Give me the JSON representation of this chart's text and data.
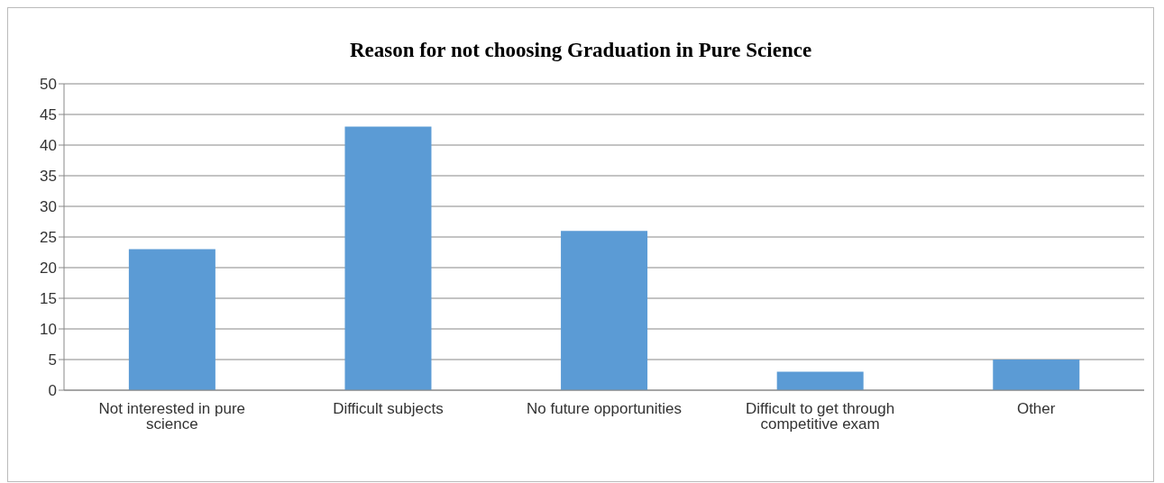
{
  "chart_data": {
    "type": "bar",
    "title": "Reason for not choosing Graduation in Pure Science",
    "categories": [
      "Not interested  in pure science",
      "Difficult subjects",
      "No future opportunities",
      "Difficult to get through competitive exam",
      "Other"
    ],
    "values": [
      23,
      43,
      26,
      3,
      5
    ],
    "color": "#5b9bd5",
    "ylim": [
      0,
      50
    ],
    "yticks": [
      0,
      5,
      10,
      15,
      20,
      25,
      30,
      35,
      40,
      45,
      50
    ],
    "grid": "y"
  }
}
